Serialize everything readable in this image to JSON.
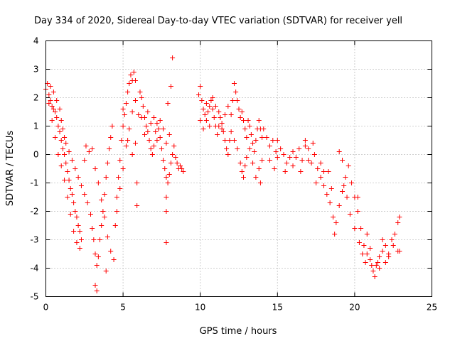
{
  "chart_data": {
    "type": "scatter",
    "title": "Day 334 of 2020, Sidereal Day-to-day VTEC variation (SDTVAR) for receiver yell",
    "xlabel": "GPS time / hours",
    "ylabel": "SDTVAR / TECUs",
    "xlim": [
      0,
      25
    ],
    "ylim": [
      -5,
      4
    ],
    "xticks": [
      "0",
      "5",
      "10",
      "15",
      "20",
      "25"
    ],
    "yticks": [
      "4",
      "3",
      "2",
      "1",
      "0",
      "-1",
      "-2",
      "-3",
      "-4",
      "-5"
    ],
    "grid": true,
    "marker": "+",
    "color": "#ff0000",
    "series": [
      {
        "name": "SDTVAR",
        "points": [
          [
            0.0,
            2.3
          ],
          [
            0.1,
            2.5
          ],
          [
            0.2,
            2.1
          ],
          [
            0.3,
            1.9
          ],
          [
            0.4,
            1.7
          ],
          [
            0.5,
            1.6
          ],
          [
            0.6,
            1.5
          ],
          [
            0.7,
            1.3
          ],
          [
            0.8,
            1.0
          ],
          [
            0.9,
            0.8
          ],
          [
            1.0,
            0.5
          ],
          [
            1.1,
            0.2
          ],
          [
            1.2,
            0.0
          ],
          [
            1.3,
            -0.3
          ],
          [
            1.4,
            -0.6
          ],
          [
            1.5,
            -0.9
          ],
          [
            1.6,
            -1.2
          ],
          [
            1.7,
            -1.4
          ],
          [
            1.8,
            -1.7
          ],
          [
            1.9,
            -2.0
          ],
          [
            2.0,
            -2.2
          ],
          [
            2.1,
            -2.5
          ],
          [
            2.2,
            -2.7
          ],
          [
            2.3,
            -3.0
          ],
          [
            0.2,
            1.8
          ],
          [
            0.4,
            1.2
          ],
          [
            0.6,
            0.6
          ],
          [
            0.8,
            0.0
          ],
          [
            1.0,
            -0.4
          ],
          [
            1.2,
            -0.9
          ],
          [
            1.4,
            -1.5
          ],
          [
            1.6,
            -2.1
          ],
          [
            1.8,
            -2.7
          ],
          [
            2.0,
            -3.1
          ],
          [
            2.2,
            -3.3
          ],
          [
            0.3,
            2.4
          ],
          [
            0.5,
            2.2
          ],
          [
            0.7,
            1.9
          ],
          [
            0.9,
            1.6
          ],
          [
            1.0,
            1.2
          ],
          [
            1.1,
            0.9
          ],
          [
            1.2,
            0.6
          ],
          [
            1.3,
            0.4
          ],
          [
            1.5,
            0.1
          ],
          [
            1.7,
            -0.2
          ],
          [
            1.9,
            -0.5
          ],
          [
            2.1,
            -0.8
          ],
          [
            2.3,
            -1.1
          ],
          [
            2.5,
            -1.4
          ],
          [
            2.7,
            -1.7
          ],
          [
            2.9,
            -2.1
          ],
          [
            3.0,
            -2.6
          ],
          [
            3.1,
            -3.0
          ],
          [
            3.2,
            -3.5
          ],
          [
            3.3,
            -3.9
          ],
          [
            3.4,
            -3.6
          ],
          [
            3.5,
            -3.0
          ],
          [
            3.6,
            -2.5
          ],
          [
            3.7,
            -2.0
          ],
          [
            3.8,
            -1.4
          ],
          [
            3.9,
            -0.8
          ],
          [
            4.0,
            -0.3
          ],
          [
            4.1,
            0.2
          ],
          [
            4.2,
            0.6
          ],
          [
            4.3,
            1.0
          ],
          [
            3.2,
            -4.6
          ],
          [
            3.3,
            -4.8
          ],
          [
            3.9,
            -4.1
          ],
          [
            2.5,
            -0.2
          ],
          [
            2.6,
            0.3
          ],
          [
            2.8,
            0.1
          ],
          [
            3.0,
            0.2
          ],
          [
            3.2,
            -0.5
          ],
          [
            3.4,
            -1.0
          ],
          [
            3.6,
            -1.6
          ],
          [
            3.8,
            -2.2
          ],
          [
            4.0,
            -2.9
          ],
          [
            4.2,
            -3.4
          ],
          [
            4.4,
            -3.7
          ],
          [
            4.5,
            -2.5
          ],
          [
            4.6,
            -1.5
          ],
          [
            4.7,
            -0.8
          ],
          [
            4.8,
            -0.2
          ],
          [
            4.9,
            0.5
          ],
          [
            5.0,
            1.0
          ],
          [
            5.1,
            1.4
          ],
          [
            5.2,
            1.8
          ],
          [
            5.3,
            2.2
          ],
          [
            5.4,
            2.5
          ],
          [
            5.5,
            2.8
          ],
          [
            5.6,
            2.6
          ],
          [
            5.7,
            2.9
          ],
          [
            5.8,
            2.6
          ],
          [
            4.6,
            -2.0
          ],
          [
            4.8,
            -1.2
          ],
          [
            5.0,
            -0.5
          ],
          [
            5.2,
            0.3
          ],
          [
            5.4,
            0.9
          ],
          [
            5.6,
            1.5
          ],
          [
            5.8,
            1.9
          ],
          [
            5.9,
            -1.0
          ],
          [
            5.9,
            -1.8
          ],
          [
            5.0,
            1.6
          ],
          [
            5.3,
            0.5
          ],
          [
            5.6,
            0.0
          ],
          [
            5.8,
            0.4
          ],
          [
            6.0,
            1.4
          ],
          [
            6.1,
            2.2
          ],
          [
            6.2,
            2.0
          ],
          [
            6.3,
            1.7
          ],
          [
            6.4,
            1.3
          ],
          [
            6.5,
            1.0
          ],
          [
            6.6,
            0.8
          ],
          [
            6.7,
            0.5
          ],
          [
            6.8,
            0.2
          ],
          [
            6.9,
            0.0
          ],
          [
            7.0,
            0.3
          ],
          [
            7.1,
            0.8
          ],
          [
            7.2,
            1.1
          ],
          [
            7.3,
            0.9
          ],
          [
            7.4,
            0.6
          ],
          [
            7.5,
            0.2
          ],
          [
            7.6,
            -0.2
          ],
          [
            7.7,
            -0.5
          ],
          [
            7.8,
            -0.8
          ],
          [
            7.9,
            -1.0
          ],
          [
            8.0,
            -0.7
          ],
          [
            8.1,
            -0.3
          ],
          [
            8.2,
            0.0
          ],
          [
            8.3,
            0.3
          ],
          [
            8.4,
            -0.1
          ],
          [
            8.5,
            -0.3
          ],
          [
            8.6,
            -0.5
          ],
          [
            8.7,
            -0.4
          ],
          [
            8.8,
            -0.5
          ],
          [
            8.9,
            -0.6
          ],
          [
            6.2,
            1.3
          ],
          [
            6.4,
            0.7
          ],
          [
            6.6,
            1.5
          ],
          [
            6.8,
            1.1
          ],
          [
            7.0,
            1.3
          ],
          [
            7.2,
            0.5
          ],
          [
            7.4,
            1.2
          ],
          [
            7.6,
            0.9
          ],
          [
            7.8,
            0.4
          ],
          [
            8.0,
            0.7
          ],
          [
            7.8,
            -1.5
          ],
          [
            7.8,
            -2.0
          ],
          [
            7.8,
            -3.1
          ],
          [
            8.2,
            3.4
          ],
          [
            8.1,
            2.4
          ],
          [
            7.9,
            1.8
          ],
          [
            9.9,
            2.1
          ],
          [
            10.0,
            2.4
          ],
          [
            10.1,
            1.9
          ],
          [
            10.2,
            1.6
          ],
          [
            10.3,
            1.4
          ],
          [
            10.4,
            1.2
          ],
          [
            10.5,
            1.5
          ],
          [
            10.6,
            1.7
          ],
          [
            10.7,
            1.9
          ],
          [
            10.8,
            1.6
          ],
          [
            10.9,
            1.3
          ],
          [
            11.0,
            1.0
          ],
          [
            11.1,
            0.7
          ],
          [
            11.2,
            1.0
          ],
          [
            11.3,
            1.3
          ],
          [
            11.4,
            1.1
          ],
          [
            11.5,
            0.8
          ],
          [
            11.6,
            0.5
          ],
          [
            11.7,
            0.2
          ],
          [
            11.8,
            0.0
          ],
          [
            11.9,
            0.5
          ],
          [
            12.0,
            1.4
          ],
          [
            12.1,
            1.9
          ],
          [
            12.2,
            2.5
          ],
          [
            12.3,
            2.2
          ],
          [
            12.4,
            1.9
          ],
          [
            12.5,
            1.6
          ],
          [
            12.6,
            1.3
          ],
          [
            12.7,
            1.5
          ],
          [
            12.8,
            1.2
          ],
          [
            12.9,
            0.9
          ],
          [
            13.0,
            0.6
          ],
          [
            13.1,
            1.2
          ],
          [
            13.2,
            1.0
          ],
          [
            13.3,
            0.7
          ],
          [
            13.4,
            0.4
          ],
          [
            13.5,
            0.1
          ],
          [
            13.6,
            0.5
          ],
          [
            13.7,
            0.9
          ],
          [
            13.8,
            1.2
          ],
          [
            13.9,
            0.9
          ],
          [
            14.0,
            0.6
          ],
          [
            10.0,
            1.2
          ],
          [
            10.2,
            0.9
          ],
          [
            10.4,
            1.8
          ],
          [
            10.6,
            1.0
          ],
          [
            10.8,
            2.0
          ],
          [
            11.0,
            1.7
          ],
          [
            11.2,
            1.5
          ],
          [
            11.4,
            0.9
          ],
          [
            11.6,
            1.4
          ],
          [
            11.8,
            1.7
          ],
          [
            12.0,
            0.8
          ],
          [
            12.2,
            0.5
          ],
          [
            12.4,
            0.2
          ],
          [
            12.6,
            -0.3
          ],
          [
            12.7,
            -0.6
          ],
          [
            12.8,
            -0.8
          ],
          [
            12.9,
            -0.4
          ],
          [
            13.0,
            -0.1
          ],
          [
            13.2,
            0.2
          ],
          [
            13.4,
            -0.3
          ],
          [
            13.6,
            -0.8
          ],
          [
            13.8,
            -0.5
          ],
          [
            14.0,
            -0.2
          ],
          [
            13.9,
            -1.0
          ],
          [
            14.1,
            0.9
          ],
          [
            14.3,
            0.6
          ],
          [
            14.5,
            0.3
          ],
          [
            14.7,
            0.5
          ],
          [
            14.9,
            0.1
          ],
          [
            15.0,
            -0.1
          ],
          [
            15.2,
            0.2
          ],
          [
            15.4,
            0.0
          ],
          [
            15.6,
            -0.3
          ],
          [
            15.8,
            -0.1
          ],
          [
            16.0,
            -0.4
          ],
          [
            16.2,
            -0.1
          ],
          [
            16.4,
            0.2
          ],
          [
            16.6,
            -0.2
          ],
          [
            16.8,
            0.5
          ],
          [
            17.0,
            0.2
          ],
          [
            17.2,
            -0.3
          ],
          [
            17.4,
            0.0
          ],
          [
            17.6,
            -0.5
          ],
          [
            17.8,
            -0.8
          ],
          [
            18.0,
            -1.1
          ],
          [
            18.2,
            -1.4
          ],
          [
            18.4,
            -1.7
          ],
          [
            18.6,
            -2.2
          ],
          [
            18.7,
            -2.8
          ],
          [
            18.8,
            -2.4
          ],
          [
            19.0,
            -1.8
          ],
          [
            19.2,
            -1.3
          ],
          [
            19.4,
            -0.8
          ],
          [
            19.6,
            -0.4
          ],
          [
            19.8,
            -1.0
          ],
          [
            20.0,
            -1.5
          ],
          [
            20.2,
            -2.0
          ],
          [
            20.4,
            -2.6
          ],
          [
            20.6,
            -3.2
          ],
          [
            20.8,
            -3.5
          ],
          [
            21.0,
            -3.7
          ],
          [
            21.2,
            -4.1
          ],
          [
            21.3,
            -4.3
          ],
          [
            21.4,
            -3.9
          ],
          [
            21.6,
            -3.6
          ],
          [
            21.8,
            -3.4
          ],
          [
            22.0,
            -3.2
          ],
          [
            22.2,
            -3.5
          ],
          [
            22.4,
            -3.0
          ],
          [
            22.6,
            -2.8
          ],
          [
            22.8,
            -2.4
          ],
          [
            22.9,
            -2.2
          ],
          [
            15.0,
            0.5
          ],
          [
            15.5,
            -0.6
          ],
          [
            16.0,
            0.1
          ],
          [
            16.5,
            -0.6
          ],
          [
            17.0,
            -0.2
          ],
          [
            17.5,
            -1.0
          ],
          [
            18.0,
            -0.6
          ],
          [
            18.5,
            -1.2
          ],
          [
            19.0,
            0.1
          ],
          [
            19.2,
            -0.2
          ],
          [
            19.5,
            -1.5
          ],
          [
            19.7,
            -2.1
          ],
          [
            20.0,
            -2.6
          ],
          [
            20.3,
            -3.1
          ],
          [
            20.5,
            -3.5
          ],
          [
            20.7,
            -3.8
          ],
          [
            21.0,
            -3.3
          ],
          [
            21.5,
            -3.8
          ],
          [
            21.8,
            -3.0
          ],
          [
            22.2,
            -3.6
          ],
          [
            22.5,
            -3.2
          ],
          [
            22.8,
            -3.4
          ],
          [
            22.9,
            -3.4
          ],
          [
            14.5,
            -0.2
          ],
          [
            14.8,
            -0.5
          ],
          [
            16.8,
            0.3
          ],
          [
            17.3,
            0.4
          ],
          [
            17.8,
            -0.3
          ],
          [
            18.3,
            -0.6
          ],
          [
            19.3,
            -1.1
          ],
          [
            20.2,
            -1.5
          ],
          [
            20.8,
            -2.8
          ],
          [
            21.1,
            -3.9
          ],
          [
            21.6,
            -4.0
          ],
          [
            22.0,
            -3.8
          ]
        ]
      }
    ]
  }
}
